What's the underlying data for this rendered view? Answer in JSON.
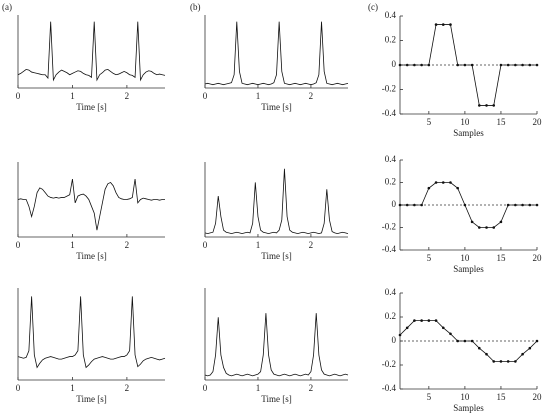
{
  "panel_labels": [
    "(a)",
    "(b)",
    "(c)"
  ],
  "chart_data": [
    {
      "type": "line",
      "xlabel": "Time [s]",
      "xlim": [
        0,
        2.7
      ],
      "xticks": [
        0,
        1,
        2
      ],
      "ylim": [
        0,
        1.1
      ],
      "x": [
        0,
        0.05,
        0.1,
        0.15,
        0.2,
        0.25,
        0.3,
        0.35,
        0.4,
        0.45,
        0.5,
        0.55,
        0.6,
        0.65,
        0.7,
        0.75,
        0.8,
        0.85,
        0.9,
        0.95,
        1,
        1.05,
        1.1,
        1.15,
        1.2,
        1.25,
        1.3,
        1.35,
        1.4,
        1.45,
        1.5,
        1.55,
        1.6,
        1.65,
        1.7,
        1.75,
        1.8,
        1.85,
        1.9,
        1.95,
        2,
        2.05,
        2.1,
        2.15,
        2.2,
        2.25,
        2.3,
        2.35,
        2.4,
        2.45,
        2.5,
        2.55,
        2.6,
        2.65,
        2.7
      ],
      "values": [
        0.2,
        0.22,
        0.25,
        0.28,
        0.27,
        0.24,
        0.23,
        0.22,
        0.21,
        0.2,
        0.2,
        0.15,
        1.0,
        0.12,
        0.2,
        0.24,
        0.27,
        0.25,
        0.23,
        0.2,
        0.22,
        0.24,
        0.26,
        0.25,
        0.22,
        0.2,
        0.19,
        0.16,
        1.0,
        0.12,
        0.2,
        0.23,
        0.27,
        0.28,
        0.25,
        0.22,
        0.2,
        0.21,
        0.23,
        0.25,
        0.23,
        0.2,
        0.19,
        0.16,
        1.0,
        0.12,
        0.2,
        0.24,
        0.26,
        0.25,
        0.22,
        0.2,
        0.21,
        0.2,
        0.19
      ]
    },
    {
      "type": "line",
      "xlabel": "Time [s]",
      "xlim": [
        0,
        2.7
      ],
      "xticks": [
        0,
        1,
        2
      ],
      "ylim": [
        0,
        1.1
      ],
      "x": [
        0,
        0.05,
        0.1,
        0.15,
        0.2,
        0.25,
        0.3,
        0.35,
        0.4,
        0.45,
        0.5,
        0.55,
        0.6,
        0.65,
        0.7,
        0.75,
        0.8,
        0.85,
        0.9,
        0.95,
        1,
        1.05,
        1.1,
        1.15,
        1.2,
        1.25,
        1.3,
        1.35,
        1.4,
        1.45,
        1.5,
        1.55,
        1.6,
        1.65,
        1.7,
        1.75,
        1.8,
        1.85,
        1.9,
        1.95,
        2,
        2.05,
        2.1,
        2.15,
        2.2,
        2.25,
        2.3,
        2.35,
        2.4,
        2.45,
        2.5,
        2.55,
        2.6,
        2.65,
        2.7
      ],
      "values": [
        0.55,
        0.56,
        0.55,
        0.55,
        0.45,
        0.3,
        0.45,
        0.65,
        0.72,
        0.7,
        0.65,
        0.6,
        0.58,
        0.57,
        0.58,
        0.57,
        0.58,
        0.58,
        0.6,
        0.62,
        0.85,
        0.5,
        0.6,
        0.62,
        0.63,
        0.6,
        0.55,
        0.45,
        0.35,
        0.1,
        0.3,
        0.5,
        0.7,
        0.78,
        0.8,
        0.75,
        0.65,
        0.58,
        0.56,
        0.55,
        0.55,
        0.56,
        0.58,
        0.85,
        0.5,
        0.55,
        0.57,
        0.56,
        0.55,
        0.54,
        0.55,
        0.55,
        0.54,
        0.55,
        0.55
      ]
    },
    {
      "type": "line",
      "xlabel": "Time [s]",
      "xlim": [
        0,
        2.7
      ],
      "xticks": [
        0,
        1,
        2
      ],
      "ylim": [
        0,
        1.1
      ],
      "x": [
        0,
        0.05,
        0.1,
        0.15,
        0.2,
        0.25,
        0.3,
        0.35,
        0.4,
        0.45,
        0.5,
        0.55,
        0.6,
        0.65,
        0.7,
        0.75,
        0.8,
        0.85,
        0.9,
        0.95,
        1,
        1.05,
        1.1,
        1.15,
        1.2,
        1.25,
        1.3,
        1.35,
        1.4,
        1.45,
        1.5,
        1.55,
        1.6,
        1.65,
        1.7,
        1.75,
        1.8,
        1.85,
        1.9,
        1.95,
        2,
        2.05,
        2.1,
        2.15,
        2.2,
        2.25,
        2.3,
        2.35,
        2.4,
        2.45,
        2.5,
        2.55,
        2.6,
        2.65,
        2.7
      ],
      "values": [
        0.28,
        0.27,
        0.26,
        0.27,
        0.35,
        1.0,
        0.3,
        0.15,
        0.2,
        0.24,
        0.26,
        0.27,
        0.28,
        0.27,
        0.26,
        0.25,
        0.25,
        0.26,
        0.27,
        0.28,
        0.28,
        0.3,
        0.35,
        1.0,
        0.3,
        0.15,
        0.18,
        0.22,
        0.25,
        0.26,
        0.27,
        0.28,
        0.27,
        0.26,
        0.25,
        0.25,
        0.26,
        0.27,
        0.28,
        0.28,
        0.3,
        0.35,
        1.0,
        0.3,
        0.16,
        0.19,
        0.23,
        0.25,
        0.26,
        0.27,
        0.26,
        0.25,
        0.24,
        0.25,
        0.26
      ]
    },
    {
      "type": "line",
      "xlabel": "Time [s]",
      "xlim": [
        0,
        2.7
      ],
      "xticks": [
        0,
        1,
        2
      ],
      "ylim": [
        0,
        1.1
      ],
      "x": [
        0,
        0.05,
        0.1,
        0.15,
        0.2,
        0.25,
        0.3,
        0.35,
        0.4,
        0.45,
        0.5,
        0.55,
        0.6,
        0.65,
        0.7,
        0.75,
        0.8,
        0.85,
        0.9,
        0.95,
        1,
        1.05,
        1.1,
        1.15,
        1.2,
        1.25,
        1.3,
        1.35,
        1.4,
        1.45,
        1.5,
        1.55,
        1.6,
        1.65,
        1.7,
        1.75,
        1.8,
        1.85,
        1.9,
        1.95,
        2,
        2.05,
        2.1,
        2.15,
        2.2,
        2.25,
        2.3,
        2.35,
        2.4,
        2.45,
        2.5,
        2.55,
        2.6,
        2.65,
        2.7
      ],
      "values": [
        0.06,
        0.07,
        0.06,
        0.05,
        0.06,
        0.07,
        0.06,
        0.05,
        0.06,
        0.07,
        0.08,
        0.2,
        1.0,
        0.25,
        0.07,
        0.06,
        0.05,
        0.06,
        0.07,
        0.06,
        0.05,
        0.06,
        0.07,
        0.06,
        0.05,
        0.06,
        0.08,
        0.2,
        1.0,
        0.25,
        0.07,
        0.06,
        0.05,
        0.06,
        0.07,
        0.06,
        0.05,
        0.06,
        0.07,
        0.06,
        0.05,
        0.06,
        0.08,
        0.2,
        1.0,
        0.25,
        0.07,
        0.06,
        0.05,
        0.06,
        0.07,
        0.06,
        0.05,
        0.06,
        0.07
      ]
    },
    {
      "type": "line",
      "xlabel": "Time [s]",
      "xlim": [
        0,
        2.7
      ],
      "xticks": [
        0,
        1,
        2
      ],
      "ylim": [
        0,
        1.1
      ],
      "x": [
        0,
        0.05,
        0.1,
        0.15,
        0.2,
        0.25,
        0.3,
        0.35,
        0.4,
        0.45,
        0.5,
        0.55,
        0.6,
        0.65,
        0.7,
        0.75,
        0.8,
        0.85,
        0.9,
        0.95,
        1,
        1.05,
        1.1,
        1.15,
        1.2,
        1.25,
        1.3,
        1.35,
        1.4,
        1.45,
        1.5,
        1.55,
        1.6,
        1.65,
        1.7,
        1.75,
        1.8,
        1.85,
        1.9,
        1.95,
        2,
        2.05,
        2.1,
        2.15,
        2.2,
        2.25,
        2.3,
        2.35,
        2.4,
        2.45,
        2.5,
        2.55,
        2.6,
        2.65,
        2.7
      ],
      "values": [
        0.06,
        0.05,
        0.06,
        0.07,
        0.2,
        0.6,
        0.3,
        0.1,
        0.07,
        0.06,
        0.05,
        0.06,
        0.07,
        0.06,
        0.05,
        0.06,
        0.07,
        0.06,
        0.2,
        0.8,
        0.3,
        0.1,
        0.07,
        0.06,
        0.05,
        0.06,
        0.07,
        0.06,
        0.1,
        0.25,
        1.0,
        0.3,
        0.1,
        0.07,
        0.06,
        0.05,
        0.06,
        0.07,
        0.06,
        0.05,
        0.06,
        0.07,
        0.06,
        0.05,
        0.06,
        0.2,
        0.7,
        0.25,
        0.08,
        0.06,
        0.05,
        0.06,
        0.07,
        0.06,
        0.05
      ]
    },
    {
      "type": "line",
      "xlabel": "Time [s]",
      "xlim": [
        0,
        2.7
      ],
      "xticks": [
        0,
        1,
        2
      ],
      "ylim": [
        0,
        1.1
      ],
      "x": [
        0,
        0.05,
        0.1,
        0.15,
        0.2,
        0.25,
        0.3,
        0.35,
        0.4,
        0.45,
        0.5,
        0.55,
        0.6,
        0.65,
        0.7,
        0.75,
        0.8,
        0.85,
        0.9,
        0.95,
        1,
        1.05,
        1.1,
        1.15,
        1.2,
        1.25,
        1.3,
        1.35,
        1.4,
        1.45,
        1.5,
        1.55,
        1.6,
        1.65,
        1.7,
        1.75,
        1.8,
        1.85,
        1.9,
        1.95,
        2,
        2.05,
        2.1,
        2.15,
        2.2,
        2.25,
        2.3,
        2.35,
        2.4,
        2.45,
        2.5,
        2.55,
        2.6,
        2.65,
        2.7
      ],
      "values": [
        0.06,
        0.05,
        0.06,
        0.1,
        0.3,
        0.75,
        0.3,
        0.15,
        0.08,
        0.06,
        0.05,
        0.06,
        0.07,
        0.06,
        0.05,
        0.06,
        0.07,
        0.06,
        0.05,
        0.06,
        0.07,
        0.1,
        0.3,
        0.8,
        0.3,
        0.12,
        0.07,
        0.06,
        0.05,
        0.06,
        0.07,
        0.06,
        0.05,
        0.06,
        0.07,
        0.06,
        0.05,
        0.06,
        0.07,
        0.06,
        0.1,
        0.3,
        0.8,
        0.3,
        0.12,
        0.07,
        0.06,
        0.05,
        0.06,
        0.07,
        0.06,
        0.05,
        0.06,
        0.07,
        0.06
      ]
    },
    {
      "type": "line",
      "markers": true,
      "xlabel": "Samples",
      "xlim": [
        1,
        20
      ],
      "xticks": [
        5,
        10,
        15,
        20
      ],
      "ylim": [
        -0.4,
        0.4
      ],
      "yticks": [
        -0.4,
        -0.2,
        0,
        0.2,
        0.4
      ],
      "x": [
        1,
        2,
        3,
        4,
        5,
        6,
        7,
        8,
        9,
        10,
        11,
        12,
        13,
        14,
        15,
        16,
        17,
        18,
        19,
        20
      ],
      "values": [
        0,
        0,
        0,
        0,
        0,
        0.33,
        0.33,
        0.33,
        0,
        0,
        0,
        -0.33,
        -0.33,
        -0.33,
        0,
        0,
        0,
        0,
        0,
        0
      ]
    },
    {
      "type": "line",
      "markers": true,
      "xlabel": "Samples",
      "xlim": [
        1,
        20
      ],
      "xticks": [
        5,
        10,
        15,
        20
      ],
      "ylim": [
        -0.4,
        0.4
      ],
      "yticks": [
        -0.4,
        -0.2,
        0,
        0.2,
        0.4
      ],
      "x": [
        1,
        2,
        3,
        4,
        5,
        6,
        7,
        8,
        9,
        10,
        11,
        12,
        13,
        14,
        15,
        16,
        17,
        18,
        19,
        20
      ],
      "values": [
        0,
        0,
        0,
        0,
        0.15,
        0.2,
        0.2,
        0.2,
        0.15,
        0,
        -0.15,
        -0.2,
        -0.2,
        -0.2,
        -0.15,
        0,
        0,
        0,
        0,
        0
      ]
    },
    {
      "type": "line",
      "markers": true,
      "xlabel": "Samples",
      "xlim": [
        1,
        20
      ],
      "xticks": [
        5,
        10,
        15,
        20
      ],
      "ylim": [
        -0.4,
        0.4
      ],
      "yticks": [
        -0.4,
        -0.2,
        0,
        0.2,
        0.4
      ],
      "x": [
        1,
        2,
        3,
        4,
        5,
        6,
        7,
        8,
        9,
        10,
        11,
        12,
        13,
        14,
        15,
        16,
        17,
        18,
        19,
        20
      ],
      "values": [
        0.05,
        0.11,
        0.17,
        0.17,
        0.17,
        0.17,
        0.11,
        0.06,
        0,
        0,
        0,
        -0.06,
        -0.11,
        -0.17,
        -0.17,
        -0.17,
        -0.17,
        -0.11,
        -0.06,
        0
      ]
    }
  ]
}
